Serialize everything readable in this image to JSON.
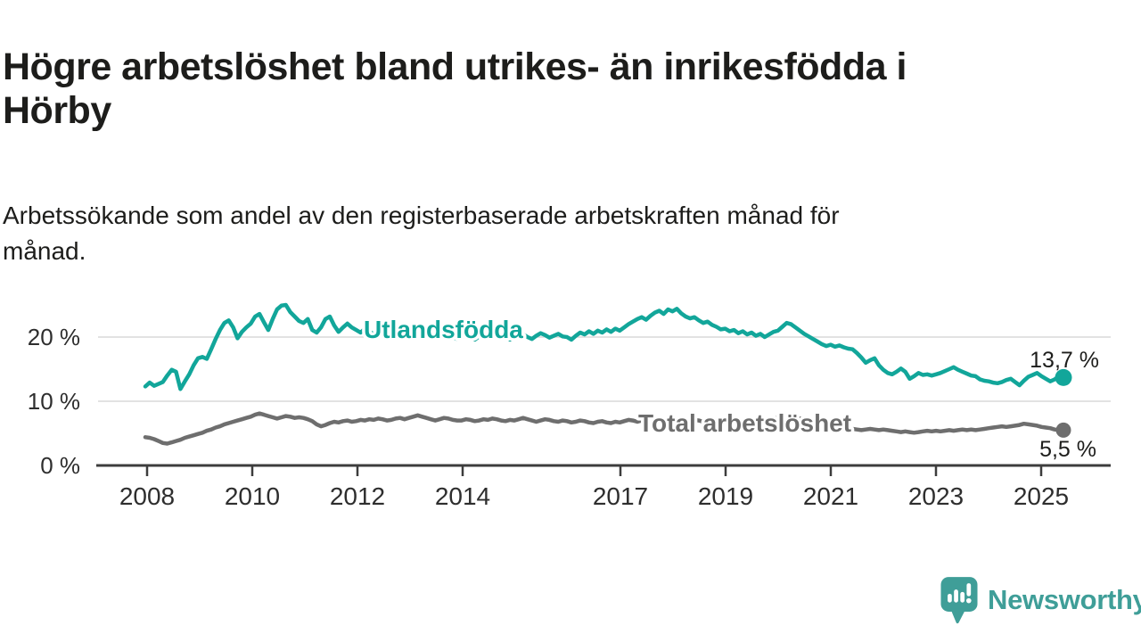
{
  "header": {
    "title_lines": [
      "Högre arbetslöshet bland utrikes- än inrikesfödda i",
      "Hörby"
    ],
    "subtitle_lines": [
      "Arbetssökande som andel av den registerbaserade arbetskraften månad för",
      "månad."
    ]
  },
  "branding": {
    "wordmark": "Newsworthy",
    "logo_icon": "newsworthy-speech-bubble-bar-chart-icon",
    "color": "#3f9e98"
  },
  "colors": {
    "foreign_born": "#12a69a",
    "total": "#6e6e6e",
    "grid": "#d9d9d9",
    "axis": "#3d3d3d",
    "tick_text": "#2e2e2e",
    "text": "#1d1d1b",
    "background": "#ffffff"
  },
  "chart_data": {
    "type": "line",
    "title": "Högre arbetslöshet bland utrikes- än inrikesfödda i Hörby",
    "subtitle": "Arbetssökande som andel av den registerbaserade arbetskraften månad för månad.",
    "xlabel": "",
    "ylabel": "",
    "x_unit": "month",
    "x_start": "2008-01",
    "x_end": "2025-06",
    "ylim": [
      0,
      27
    ],
    "grid": "horizontal",
    "legend": "inline-labels",
    "y_ticks": [
      {
        "value": 0,
        "label": "0 %"
      },
      {
        "value": 10,
        "label": "10 %"
      },
      {
        "value": 20,
        "label": "20 %"
      }
    ],
    "x_ticks": [
      {
        "year": 2008,
        "label": "2008"
      },
      {
        "year": 2010,
        "label": "2010"
      },
      {
        "year": 2012,
        "label": "2012"
      },
      {
        "year": 2014,
        "label": "2014"
      },
      {
        "year": 2017,
        "label": "2017"
      },
      {
        "year": 2019,
        "label": "2019"
      },
      {
        "year": 2021,
        "label": "2021"
      },
      {
        "year": 2023,
        "label": "2023"
      },
      {
        "year": 2025,
        "label": "2025"
      }
    ],
    "series": [
      {
        "name": "Utlandsfödda",
        "color": "#12a69a",
        "end_label": "13,7 %",
        "end_value": 13.7,
        "values": [
          12.3,
          12.9,
          12.4,
          12.7,
          13.0,
          14.0,
          14.9,
          14.6,
          11.9,
          13.1,
          14.2,
          15.6,
          16.7,
          16.9,
          16.6,
          18.1,
          19.7,
          21.1,
          22.2,
          22.6,
          21.5,
          19.8,
          20.8,
          21.5,
          22.1,
          23.2,
          23.6,
          22.3,
          21.1,
          22.8,
          24.3,
          24.9,
          25.0,
          23.9,
          23.2,
          22.5,
          22.2,
          22.8,
          21.1,
          20.7,
          21.5,
          22.8,
          23.2,
          21.8,
          20.8,
          21.5,
          22.1,
          21.5,
          21.1,
          20.7,
          21.3,
          20.9,
          20.4,
          20.8,
          21.2,
          20.6,
          20.1,
          20.5,
          20.9,
          20.4,
          20.2,
          20.6,
          20.1,
          19.8,
          20.3,
          20.7,
          20.4,
          19.9,
          20.2,
          20.5,
          20.0,
          19.7,
          19.9,
          20.3,
          20.0,
          19.6,
          20.1,
          20.4,
          20.2,
          19.8,
          20.0,
          20.3,
          19.9,
          19.6,
          19.8,
          20.1,
          20.4,
          20.0,
          19.7,
          20.2,
          20.6,
          20.3,
          19.9,
          20.2,
          20.5,
          20.1,
          20.0,
          19.6,
          20.2,
          20.7,
          20.4,
          20.9,
          20.5,
          21.0,
          20.7,
          21.2,
          20.8,
          21.3,
          21.0,
          21.5,
          22.0,
          22.4,
          22.8,
          23.1,
          22.7,
          23.3,
          23.8,
          24.1,
          23.6,
          24.3,
          24.0,
          24.4,
          23.7,
          23.2,
          22.9,
          23.1,
          22.6,
          22.2,
          22.4,
          21.9,
          21.6,
          21.2,
          21.3,
          20.9,
          21.1,
          20.6,
          20.9,
          20.4,
          20.7,
          20.2,
          20.5,
          20.0,
          20.4,
          20.8,
          21.0,
          21.6,
          22.2,
          22.0,
          21.5,
          21.0,
          20.5,
          20.1,
          19.7,
          19.3,
          18.9,
          18.6,
          18.8,
          18.5,
          18.7,
          18.4,
          18.2,
          18.1,
          17.5,
          16.8,
          16.0,
          16.4,
          16.7,
          15.6,
          14.9,
          14.4,
          14.2,
          14.6,
          15.1,
          14.6,
          13.5,
          13.9,
          14.4,
          14.1,
          14.2,
          14.0,
          14.2,
          14.4,
          14.7,
          15.0,
          15.3,
          14.9,
          14.6,
          14.3,
          14.0,
          13.9,
          13.4,
          13.2,
          13.1,
          12.9,
          12.8,
          13.0,
          13.3,
          13.5,
          13.0,
          12.5,
          13.2,
          13.8,
          14.1,
          14.4,
          13.9,
          13.5,
          13.1,
          13.4,
          13.9,
          13.7
        ]
      },
      {
        "name": "Total arbetslöshet",
        "color": "#6e6e6e",
        "end_label": "5,5 %",
        "end_value": 5.5,
        "values": [
          4.4,
          4.3,
          4.1,
          3.8,
          3.5,
          3.4,
          3.6,
          3.8,
          4.0,
          4.3,
          4.5,
          4.7,
          4.9,
          5.1,
          5.4,
          5.6,
          5.9,
          6.1,
          6.4,
          6.6,
          6.8,
          7.0,
          7.2,
          7.4,
          7.6,
          7.9,
          8.1,
          7.9,
          7.7,
          7.5,
          7.3,
          7.5,
          7.7,
          7.6,
          7.4,
          7.5,
          7.4,
          7.2,
          6.9,
          6.4,
          6.1,
          6.3,
          6.6,
          6.8,
          6.7,
          6.9,
          7.0,
          6.8,
          6.9,
          7.1,
          7.0,
          7.2,
          7.1,
          7.3,
          7.2,
          7.0,
          7.1,
          7.3,
          7.4,
          7.2,
          7.4,
          7.6,
          7.8,
          7.6,
          7.4,
          7.2,
          7.0,
          7.2,
          7.4,
          7.3,
          7.1,
          7.0,
          7.0,
          7.2,
          7.1,
          6.9,
          7.0,
          7.2,
          7.1,
          7.3,
          7.2,
          7.0,
          6.9,
          7.1,
          7.0,
          7.2,
          7.4,
          7.2,
          7.0,
          6.8,
          7.0,
          7.2,
          7.1,
          6.9,
          6.8,
          7.0,
          6.9,
          6.7,
          6.8,
          7.0,
          6.9,
          6.7,
          6.6,
          6.8,
          6.9,
          6.7,
          6.6,
          6.8,
          6.7,
          6.9,
          7.1,
          7.0,
          6.8,
          7.0,
          7.2,
          7.1,
          6.9,
          7.0,
          7.2,
          7.3,
          7.1,
          7.3,
          7.2,
          7.0,
          6.9,
          7.1,
          7.0,
          6.8,
          6.9,
          7.1,
          7.0,
          6.8,
          6.9,
          7.1,
          7.0,
          6.8,
          6.7,
          6.9,
          7.0,
          6.8,
          6.7,
          6.9,
          7.1,
          7.3,
          7.4,
          7.6,
          7.8,
          7.7,
          7.5,
          7.3,
          7.2,
          7.0,
          6.9,
          6.7,
          6.6,
          6.4,
          6.3,
          6.1,
          6.0,
          5.9,
          5.8,
          5.7,
          5.6,
          5.5,
          5.6,
          5.7,
          5.6,
          5.5,
          5.6,
          5.5,
          5.4,
          5.3,
          5.2,
          5.3,
          5.2,
          5.1,
          5.2,
          5.3,
          5.4,
          5.3,
          5.4,
          5.3,
          5.4,
          5.5,
          5.4,
          5.5,
          5.6,
          5.5,
          5.6,
          5.5,
          5.6,
          5.7,
          5.8,
          5.9,
          6.0,
          6.1,
          6.0,
          6.1,
          6.2,
          6.3,
          6.5,
          6.4,
          6.3,
          6.2,
          6.0,
          5.9,
          5.8,
          5.6,
          5.5,
          5.5
        ]
      }
    ]
  }
}
